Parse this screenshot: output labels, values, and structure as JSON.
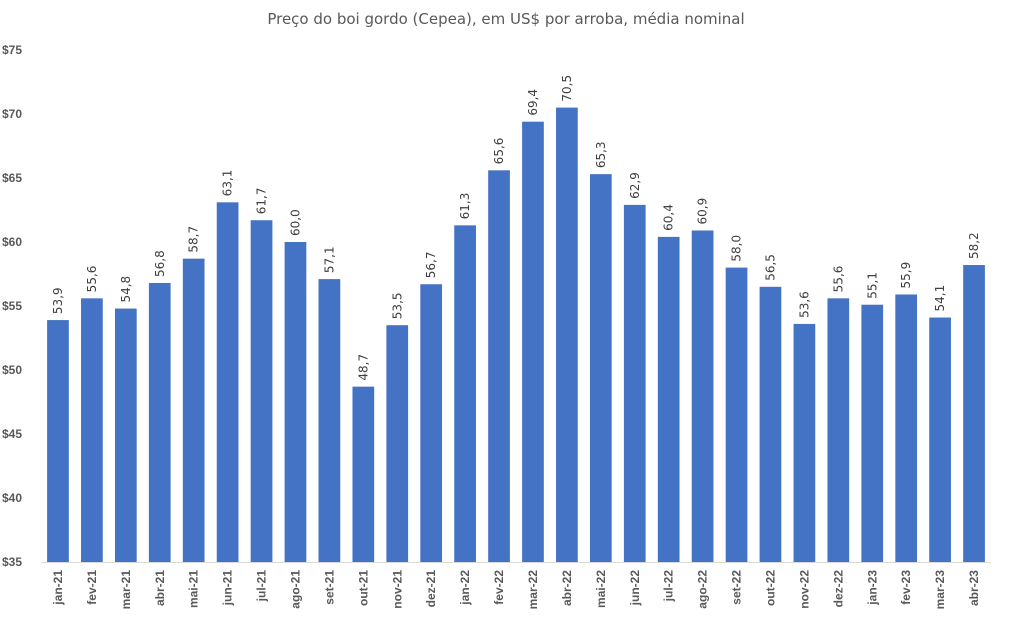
{
  "chart_data": {
    "type": "bar",
    "title": "Preço do boi gordo (Cepea), em US$ por arroba, média nominal",
    "xlabel": "",
    "ylabel": "",
    "ylim": [
      35,
      75
    ],
    "y_ticks": [
      "$35",
      "$40",
      "$45",
      "$50",
      "$55",
      "$60",
      "$65",
      "$70",
      "$75"
    ],
    "y_tick_values": [
      35,
      40,
      45,
      50,
      55,
      60,
      65,
      70,
      75
    ],
    "grid": false,
    "legend": "none",
    "bar_color": "#4472C4",
    "categories": [
      "jan-21",
      "fev-21",
      "mar-21",
      "abr-21",
      "mai-21",
      "jun-21",
      "jul-21",
      "ago-21",
      "set-21",
      "out-21",
      "nov-21",
      "dez-21",
      "jan-22",
      "fev-22",
      "mar-22",
      "abr-22",
      "mai-22",
      "jun-22",
      "jul-22",
      "ago-22",
      "set-22",
      "out-22",
      "nov-22",
      "dez-22",
      "jan-23",
      "fev-23",
      "mar-23",
      "abr-23"
    ],
    "values": [
      53.9,
      55.6,
      54.8,
      56.8,
      58.7,
      63.1,
      61.7,
      60.0,
      57.1,
      48.7,
      53.5,
      56.7,
      61.3,
      65.6,
      69.4,
      70.5,
      65.3,
      62.9,
      60.4,
      60.9,
      58.0,
      56.5,
      53.6,
      55.6,
      55.1,
      55.9,
      54.1,
      58.2
    ],
    "data_labels": [
      "53,9",
      "55,6",
      "54,8",
      "56,8",
      "58,7",
      "63,1",
      "61,7",
      "60,0",
      "57,1",
      "48,7",
      "53,5",
      "56,7",
      "61,3",
      "65,6",
      "69,4",
      "70,5",
      "65,3",
      "62,9",
      "60,4",
      "60,9",
      "58,0",
      "56,5",
      "53,6",
      "55,6",
      "55,1",
      "55,9",
      "54,1",
      "58,2"
    ]
  }
}
